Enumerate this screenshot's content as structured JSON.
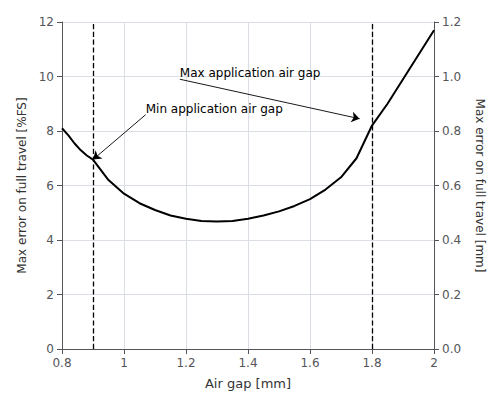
{
  "chart_data": {
    "type": "line",
    "xlabel": "Air gap [mm]",
    "ylabel": "Max error on full travel [%FS]",
    "y2label": "Max error on full travel [mm]",
    "xlim": [
      0.8,
      2.0
    ],
    "ylim": [
      0,
      12
    ],
    "y2lim": [
      0,
      1.2
    ],
    "xticks": [
      0.8,
      1,
      1.2,
      1.4,
      1.6,
      1.8,
      2
    ],
    "yticks": [
      0,
      2,
      4,
      6,
      8,
      10,
      12
    ],
    "y2ticks": [
      {
        "value": 0,
        "label": "0.0"
      },
      0.2,
      0.4,
      0.6,
      0.8,
      {
        "value": 1.0,
        "label": "1.0"
      },
      1.2
    ],
    "grid": true,
    "color": "#000000",
    "x": [
      0.8,
      0.82,
      0.84,
      0.86,
      0.88,
      0.9,
      0.92,
      0.95,
      1.0,
      1.05,
      1.1,
      1.15,
      1.2,
      1.25,
      1.3,
      1.35,
      1.4,
      1.45,
      1.5,
      1.55,
      1.6,
      1.65,
      1.7,
      1.75,
      1.8,
      1.85,
      1.9,
      1.95,
      2.0
    ],
    "values": [
      8.1,
      7.85,
      7.55,
      7.3,
      7.1,
      6.95,
      6.65,
      6.2,
      5.7,
      5.35,
      5.1,
      4.9,
      4.78,
      4.7,
      4.68,
      4.7,
      4.78,
      4.9,
      5.05,
      5.25,
      5.5,
      5.85,
      6.3,
      7.0,
      8.2,
      9.0,
      9.9,
      10.8,
      11.7
    ],
    "vlines": [
      {
        "x": 0.9,
        "color": "#000000",
        "line_style": "dashed"
      },
      {
        "x": 1.8,
        "color": "#000000",
        "line_style": "dashed"
      }
    ],
    "annotations": [
      {
        "text": "Min application air gap",
        "xy": [
          0.9,
          6.95
        ],
        "xytext": [
          1.07,
          8.6
        ]
      },
      {
        "text": "Max application air gap",
        "xy": [
          1.76,
          8.45
        ],
        "xytext": [
          1.18,
          9.9
        ]
      }
    ]
  }
}
